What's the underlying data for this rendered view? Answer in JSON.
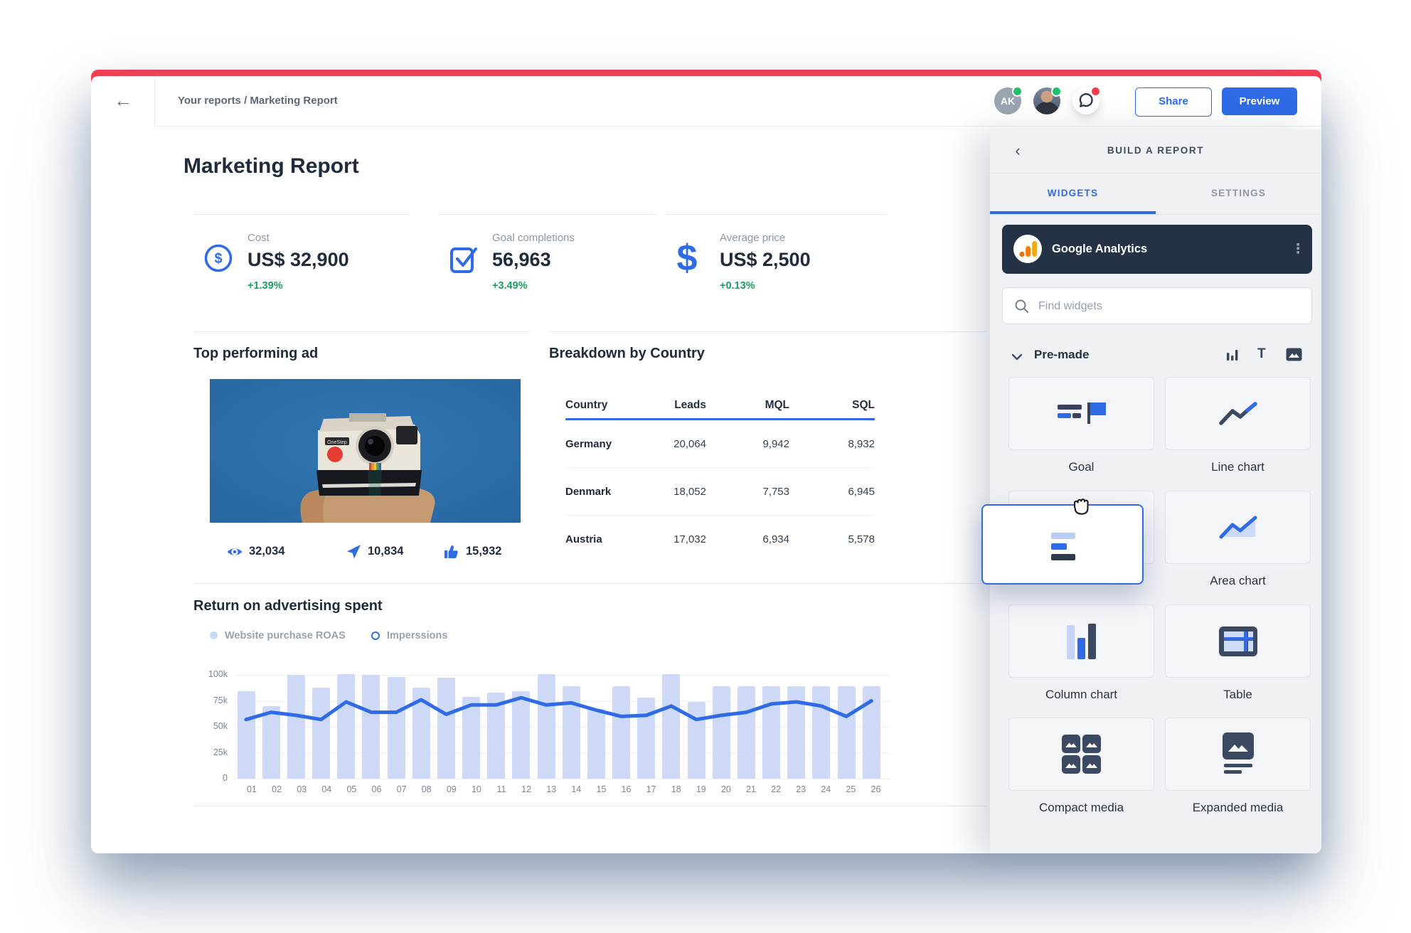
{
  "colors": {
    "accent": "#2f6be6",
    "positive": "#17a05d",
    "top_strip": "#fc3d4f",
    "bar_fill": "#cdd9f7",
    "source_navy": "#243246"
  },
  "topbar": {
    "breadcrumb": "Your reports / Marketing Report",
    "user_initials": "AK",
    "share_label": "Share",
    "preview_label": "Preview"
  },
  "report": {
    "title": "Marketing Report",
    "kpis": [
      {
        "icon": "dollar-circle-icon",
        "label": "Cost",
        "value": "US$ 32,900",
        "delta": "+1.39%"
      },
      {
        "icon": "check-square-icon",
        "label": "Goal completions",
        "value": "56,963",
        "delta": "+3.49%"
      },
      {
        "icon": "dollar-icon",
        "label": "Average price",
        "value": "US$ 2,500",
        "delta": "+0.13%"
      }
    ],
    "top_ad": {
      "title": "Top performing ad",
      "stats": [
        {
          "icon": "eye-icon",
          "value": "32,034"
        },
        {
          "icon": "send-arrow-icon",
          "value": "10,834"
        },
        {
          "icon": "thumbs-up-icon",
          "value": "15,932"
        }
      ]
    },
    "country_table": {
      "title": "Breakdown by Country",
      "columns": [
        "Country",
        "Leads",
        "MQL",
        "SQL"
      ],
      "rows": [
        [
          "Germany",
          "20,064",
          "9,942",
          "8,932"
        ],
        [
          "Denmark",
          "18,052",
          "7,753",
          "6,945"
        ],
        [
          "Austria",
          "17,032",
          "6,934",
          "5,578"
        ]
      ]
    },
    "roas_title": "Return on advertising spent"
  },
  "chart_data": {
    "type": "bar+line",
    "title": "Return on advertising spent",
    "categories": [
      "01",
      "02",
      "03",
      "04",
      "05",
      "06",
      "07",
      "08",
      "09",
      "10",
      "11",
      "12",
      "13",
      "14",
      "15",
      "16",
      "17",
      "18",
      "19",
      "20",
      "21",
      "22",
      "23",
      "24",
      "25",
      "26"
    ],
    "series": [
      {
        "name": "Website purchase ROAS",
        "type": "bar",
        "color": "#cdd9f7",
        "values": [
          84000,
          70000,
          100000,
          88000,
          101000,
          100000,
          98000,
          88000,
          97000,
          79000,
          83000,
          84000,
          101000,
          89000,
          67000,
          89000,
          78000,
          101000,
          74000,
          89000,
          89000,
          89000,
          89000,
          89000,
          89000,
          89000
        ]
      },
      {
        "name": "Imperssions",
        "type": "line",
        "color": "#2f6be6",
        "values": [
          57000,
          64000,
          61000,
          57000,
          74000,
          64000,
          64000,
          76000,
          62000,
          71000,
          71000,
          78000,
          71000,
          73000,
          66000,
          60000,
          61000,
          70000,
          57000,
          61000,
          64000,
          72000,
          74000,
          70000,
          60000,
          75000
        ]
      }
    ],
    "ylim": [
      0,
      100000
    ],
    "yticks": [
      "0",
      "25k",
      "50k",
      "75k",
      "100k"
    ],
    "grid": true,
    "legend_position": "top-left",
    "legend": [
      {
        "label": "Website purchase ROAS",
        "swatch": "filled"
      },
      {
        "label": "Imperssions",
        "swatch": "ring"
      }
    ]
  },
  "sidebar": {
    "header": "BUILD A REPORT",
    "tabs": [
      {
        "label": "WIDGETS",
        "active": true
      },
      {
        "label": "SETTINGS",
        "active": false
      }
    ],
    "source": {
      "name": "Google Analytics"
    },
    "search_placeholder": "Find widgets",
    "section_label": "Pre-made",
    "category_icons": [
      "column-chart-icon",
      "text-icon",
      "media-icon"
    ],
    "widgets": [
      {
        "label": "Goal",
        "icon": "goal"
      },
      {
        "label": "Line chart",
        "icon": "line"
      },
      {
        "label": "",
        "icon": "hidden"
      },
      {
        "label": "Area chart",
        "icon": "area"
      },
      {
        "label": "Column chart",
        "icon": "column"
      },
      {
        "label": "Table",
        "icon": "table"
      },
      {
        "label": "Compact media",
        "icon": "compact"
      },
      {
        "label": "Expanded media",
        "icon": "expanded"
      }
    ]
  }
}
